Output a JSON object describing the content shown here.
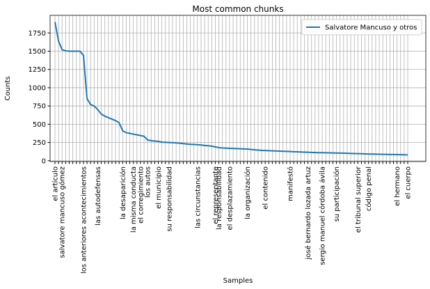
{
  "chart_data": {
    "type": "line",
    "title": "Most common chunks",
    "x_label": "Samples",
    "y_label": "Counts",
    "categories": [
      "el artículo",
      null,
      "salvatore mancuso gómez",
      null,
      null,
      null,
      null,
      null,
      "los anteriores acontecimientos",
      null,
      null,
      null,
      "las autodefensas",
      null,
      null,
      null,
      null,
      null,
      null,
      "la desaparición",
      null,
      null,
      "la misma conducta",
      null,
      "el corregimiento",
      null,
      "los autos",
      null,
      null,
      "el municipio",
      null,
      null,
      "su responsabilidad",
      null,
      null,
      null,
      null,
      null,
      null,
      null,
      "las circunstancias",
      null,
      null,
      null,
      null,
      "el representante",
      "la responsabilidad",
      null,
      null,
      "el desplazamiento",
      null,
      null,
      null,
      null,
      "la organización",
      null,
      null,
      null,
      null,
      "el contenido",
      null,
      null,
      null,
      null,
      null,
      null,
      "manifestó",
      null,
      null,
      null,
      null,
      "josé bernardo lozada artuz",
      null,
      null,
      null,
      "sergio manuel córdoba ávila",
      null,
      null,
      null,
      "su participación",
      null,
      null,
      null,
      null,
      null,
      "el tribunal superior",
      null,
      null,
      "código penal",
      null,
      null,
      null,
      null,
      null,
      null,
      null,
      "el hermano",
      null,
      null,
      "el cuerpo"
    ],
    "series": [
      {
        "name": "Salvatore Mancuso y otros",
        "color": "#1f77b4",
        "values": [
          1900,
          1640,
          1520,
          1505,
          1500,
          1500,
          1500,
          1500,
          1440,
          850,
          770,
          750,
          700,
          640,
          610,
          590,
          570,
          550,
          520,
          410,
          385,
          375,
          365,
          355,
          345,
          335,
          285,
          275,
          270,
          265,
          255,
          252,
          250,
          248,
          245,
          240,
          235,
          230,
          225,
          222,
          220,
          215,
          210,
          205,
          200,
          190,
          180,
          175,
          172,
          170,
          168,
          166,
          164,
          162,
          160,
          155,
          150,
          146,
          142,
          140,
          138,
          136,
          134,
          132,
          130,
          128,
          126,
          124,
          122,
          120,
          118,
          116,
          114,
          112,
          111,
          110,
          109,
          108,
          107,
          106,
          105,
          104,
          102,
          100,
          99,
          98,
          96,
          94,
          92,
          91,
          90,
          89,
          88,
          87,
          86,
          85,
          84,
          83,
          82,
          80
        ]
      }
    ],
    "ylim": [
      -11,
      1991
    ],
    "yticks": [
      0,
      250,
      500,
      750,
      1000,
      1250,
      1500,
      1750
    ],
    "grid": true,
    "legend": "upper right"
  }
}
